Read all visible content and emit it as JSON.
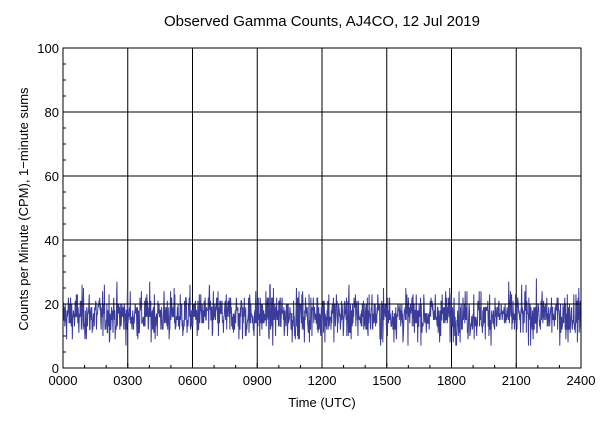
{
  "chart_data": {
    "type": "line",
    "title": "Observed Gamma Counts, AJ4CO, 12 Jul 2019",
    "xlabel": "Time (UTC)",
    "ylabel": "Counts per Minute (CPM), 1−minute sums",
    "xlim": [
      0,
      1440
    ],
    "ylim": [
      0,
      100
    ],
    "x_ticks": [
      {
        "minute": 0,
        "label": "0000"
      },
      {
        "minute": 180,
        "label": "0300"
      },
      {
        "minute": 360,
        "label": "0600"
      },
      {
        "minute": 540,
        "label": "0900"
      },
      {
        "minute": 720,
        "label": "1200"
      },
      {
        "minute": 900,
        "label": "1500"
      },
      {
        "minute": 1080,
        "label": "1800"
      },
      {
        "minute": 1260,
        "label": "2100"
      },
      {
        "minute": 1440,
        "label": "2400"
      }
    ],
    "y_ticks": [
      0,
      20,
      40,
      60,
      80,
      100
    ],
    "reference_line": 20,
    "grid": true,
    "series": [
      {
        "color": "#3b3b9a",
        "sample_interval_minutes": 1,
        "mean_cpm": 16.5,
        "typical_range": [
          9,
          24
        ],
        "min_cpm": 7,
        "max_cpm": 32
      }
    ]
  },
  "colors": {
    "plot_background": "#ffffff",
    "grid": "#000000",
    "series": "#3b3b9a"
  }
}
